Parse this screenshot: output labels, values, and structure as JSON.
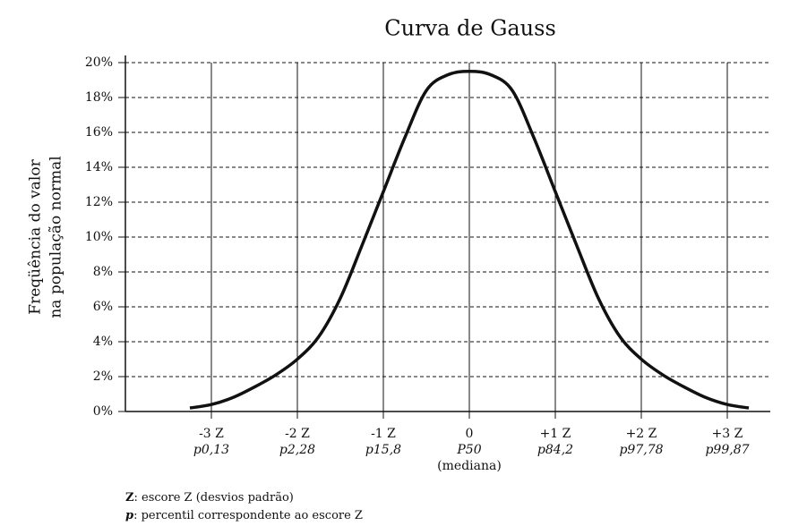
{
  "chart_data": {
    "type": "line",
    "title": "Curva de Gauss",
    "ylabel": [
      "Freqüência do valor",
      "na população normal"
    ],
    "xlim": [
      -4,
      3.5
    ],
    "ylim": [
      0,
      20
    ],
    "yticks": [
      {
        "value": 0,
        "label": "0%"
      },
      {
        "value": 2,
        "label": "2%"
      },
      {
        "value": 4,
        "label": "4%"
      },
      {
        "value": 6,
        "label": "6%"
      },
      {
        "value": 8,
        "label": "8%"
      },
      {
        "value": 10,
        "label": "10%"
      },
      {
        "value": 12,
        "label": "12%"
      },
      {
        "value": 14,
        "label": "14%"
      },
      {
        "value": 16,
        "label": "16%"
      },
      {
        "value": 18,
        "label": "18%"
      },
      {
        "value": 20,
        "label": "20%"
      }
    ],
    "xticks": [
      {
        "value": -3,
        "label": "-3 Z"
      },
      {
        "value": -2,
        "label": "-2 Z"
      },
      {
        "value": -1,
        "label": "-1 Z"
      },
      {
        "value": 0,
        "label": "0"
      },
      {
        "value": 1,
        "label": "+1 Z"
      },
      {
        "value": 2,
        "label": "+2 Z"
      },
      {
        "value": 3,
        "label": "+3 Z"
      }
    ],
    "percentile_labels": [
      "p0,13",
      "p2,28",
      "p15,8",
      "P50",
      "p84,2",
      "p97,78",
      "p99,87"
    ],
    "median_note": "(mediana)",
    "grid": true,
    "series": [
      {
        "color": "#111111",
        "x": [
          -3.25,
          -3,
          -2.75,
          -2.5,
          -2.25,
          -2,
          -1.75,
          -1.5,
          -1.25,
          -1,
          -0.75,
          -0.5,
          -0.25,
          0,
          0.25,
          0.5,
          0.75,
          1,
          1.25,
          1.5,
          1.75,
          2,
          2.25,
          2.5,
          2.75,
          3,
          3.25
        ],
        "values": [
          0.2,
          0.4,
          0.8,
          1.4,
          2.1,
          3.0,
          4.3,
          6.5,
          9.5,
          12.6,
          15.7,
          18.4,
          19.3,
          19.5,
          19.3,
          18.4,
          15.7,
          12.6,
          9.5,
          6.5,
          4.3,
          3.0,
          2.1,
          1.4,
          0.8,
          0.4,
          0.2
        ]
      }
    ],
    "notes": [
      {
        "key": "Z",
        "text": ": escore Z (desvios padrão)"
      },
      {
        "key": "p",
        "text": ": percentil correspondente ao escore Z"
      }
    ]
  }
}
